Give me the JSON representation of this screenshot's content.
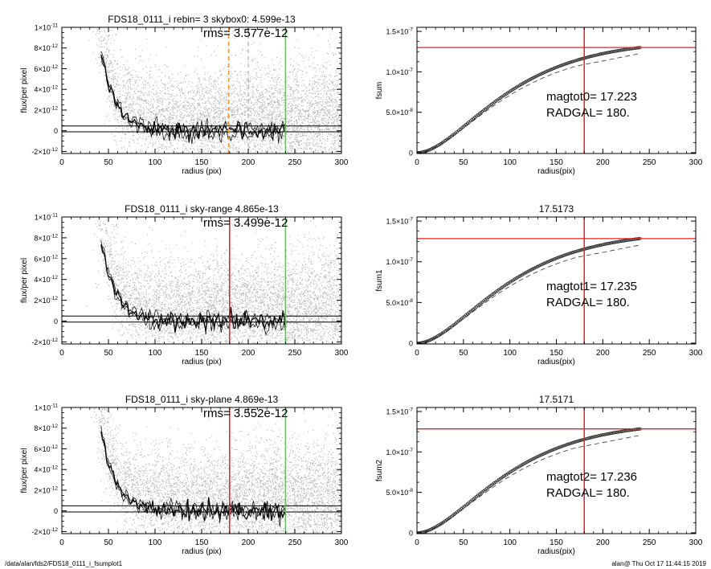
{
  "footer": {
    "path": "/data/alan/fds2/FDS18_0111_i_fsumplot1",
    "stamp": "alan@  Thu Oct 17 11:44:15 2019"
  },
  "colors": {
    "red": "#dd2222",
    "green": "#33dd33",
    "orange": "#e8952a",
    "points": "#b4b4b4",
    "profile": "#000000"
  },
  "chart_data": [
    {
      "type": "scatter",
      "title": "FDS18_0111_i rebin= 3    skybox0:  4.599e-13",
      "annotation": "rms= 3.577e-12",
      "xlabel": "radius (pix)",
      "ylabel": "flux/per pixel",
      "xlim": [
        0,
        300
      ],
      "ylim": [
        -2.2e-12,
        1e-11
      ],
      "xticks": [
        0,
        50,
        100,
        150,
        200,
        250,
        300
      ],
      "xtick_labels": [
        "0",
        "50",
        "100",
        "150",
        "200",
        "250",
        "300"
      ],
      "yticks": [
        -2e-12,
        0,
        2e-12,
        4e-12,
        6e-12,
        8e-12,
        1e-11
      ],
      "ytick_labels": [
        {
          "mant": "-2×10",
          "exp": "-12"
        },
        {
          "mant": "0",
          "exp": ""
        },
        {
          "mant": "2×10",
          "exp": "-12"
        },
        {
          "mant": "4×10",
          "exp": "-12"
        },
        {
          "mant": "6×10",
          "exp": "-12"
        },
        {
          "mant": "8×10",
          "exp": "-12"
        },
        {
          "mant": "1×10",
          "exp": "-11"
        }
      ],
      "profile": {
        "amplitude": 1.18e-10,
        "scale": 15.5,
        "r_start": 42,
        "r_end": 240
      },
      "sky_lines": [
        4.599e-13,
        -1e-13
      ],
      "vlines": [
        {
          "x": 179,
          "color": "orange",
          "dash": true
        },
        {
          "x": 200,
          "color": "gray",
          "dash": true
        },
        {
          "x": 240,
          "color": "green",
          "dash": false
        }
      ],
      "scatter_count": 5200,
      "seed": 11
    },
    {
      "type": "line",
      "title": "",
      "xlabel": "radius(pix)",
      "ylabel": "fsum",
      "xlim": [
        0,
        300
      ],
      "ylim": [
        -1e-09,
        1.55e-07
      ],
      "xticks": [
        0,
        50,
        100,
        150,
        200,
        250,
        300
      ],
      "xtick_labels": [
        "0",
        "50",
        "100",
        "150",
        "200",
        "250",
        "300"
      ],
      "yticks": [
        0,
        5e-08,
        1e-07,
        1.5e-07
      ],
      "ytick_labels": [
        {
          "mant": "0",
          "exp": ""
        },
        {
          "mant": "5.0×10",
          "exp": "-8"
        },
        {
          "mant": "1.0×10",
          "exp": "-7"
        },
        {
          "mant": "1.5×10",
          "exp": "-7"
        }
      ],
      "fsum": {
        "total": 1.3e-07,
        "total_dashed": 1.22e-07,
        "scale": 55,
        "r_end": 240,
        "dash_decline": 1.5e-09
      },
      "hline": 1.3e-07,
      "vline": 180,
      "annotations": [
        "magtot0=  17.223",
        "RADGAL=    180."
      ]
    },
    {
      "type": "scatter",
      "title": "FDS18_0111_i sky-range  4.865e-13",
      "annotation": "rms= 3.499e-12",
      "xlabel": "radius (pix)",
      "ylabel": "flux/per pixel",
      "xlim": [
        0,
        300
      ],
      "ylim": [
        -2.2e-12,
        1e-11
      ],
      "xticks": [
        0,
        50,
        100,
        150,
        200,
        250,
        300
      ],
      "xtick_labels": [
        "0",
        "50",
        "100",
        "150",
        "200",
        "250",
        "300"
      ],
      "yticks": [
        -2e-12,
        0,
        2e-12,
        4e-12,
        6e-12,
        8e-12,
        1e-11
      ],
      "ytick_labels": [
        {
          "mant": "-2×10",
          "exp": "-12"
        },
        {
          "mant": "0",
          "exp": ""
        },
        {
          "mant": "2×10",
          "exp": "-12"
        },
        {
          "mant": "4×10",
          "exp": "-12"
        },
        {
          "mant": "6×10",
          "exp": "-12"
        },
        {
          "mant": "8×10",
          "exp": "-12"
        },
        {
          "mant": "1×10",
          "exp": "-11"
        }
      ],
      "profile": {
        "amplitude": 1.18e-10,
        "scale": 15.5,
        "r_start": 42,
        "r_end": 240
      },
      "sky_lines": [
        4.865e-13,
        -1e-13
      ],
      "vlines": [
        {
          "x": 180,
          "color": "red",
          "dash": false
        },
        {
          "x": 240,
          "color": "green",
          "dash": false
        }
      ],
      "scatter_count": 5200,
      "seed": 23
    },
    {
      "type": "line",
      "title": "17.5173",
      "xlabel": "radius(pix)",
      "ylabel": "fsum1",
      "xlim": [
        0,
        300
      ],
      "ylim": [
        -1e-09,
        1.55e-07
      ],
      "xticks": [
        0,
        50,
        100,
        150,
        200,
        250,
        300
      ],
      "xtick_labels": [
        "0",
        "50",
        "100",
        "150",
        "200",
        "250",
        "300"
      ],
      "yticks": [
        0,
        5e-08,
        1e-07,
        1.5e-07
      ],
      "ytick_labels": [
        {
          "mant": "0",
          "exp": ""
        },
        {
          "mant": "5.0×10",
          "exp": "-8"
        },
        {
          "mant": "1.0×10",
          "exp": "-7"
        },
        {
          "mant": "1.5×10",
          "exp": "-7"
        }
      ],
      "fsum": {
        "total": 1.285e-07,
        "total_dashed": 1.2e-07,
        "scale": 55,
        "r_end": 240,
        "dash_decline": 1.5e-09
      },
      "hline": 1.285e-07,
      "vline": 180,
      "annotations": [
        "magtot1=  17.235",
        "RADGAL=    180."
      ]
    },
    {
      "type": "scatter",
      "title": "FDS18_0111_i sky-plane  4.869e-13",
      "annotation": "rms= 3.552e-12",
      "xlabel": "radius (pix)",
      "ylabel": "flux/per pixel",
      "xlim": [
        0,
        300
      ],
      "ylim": [
        -2.2e-12,
        1e-11
      ],
      "xticks": [
        0,
        50,
        100,
        150,
        200,
        250,
        300
      ],
      "xtick_labels": [
        "0",
        "50",
        "100",
        "150",
        "200",
        "250",
        "300"
      ],
      "yticks": [
        -2e-12,
        0,
        2e-12,
        4e-12,
        6e-12,
        8e-12,
        1e-11
      ],
      "ytick_labels": [
        {
          "mant": "-2×10",
          "exp": "-12"
        },
        {
          "mant": "0",
          "exp": ""
        },
        {
          "mant": "2×10",
          "exp": "-12"
        },
        {
          "mant": "4×10",
          "exp": "-12"
        },
        {
          "mant": "6×10",
          "exp": "-12"
        },
        {
          "mant": "8×10",
          "exp": "-12"
        },
        {
          "mant": "1×10",
          "exp": "-11"
        }
      ],
      "profile": {
        "amplitude": 1.18e-10,
        "scale": 15.5,
        "r_start": 42,
        "r_end": 240
      },
      "sky_lines": [
        4.869e-13,
        -1e-13
      ],
      "vlines": [
        {
          "x": 180,
          "color": "red",
          "dash": false
        },
        {
          "x": 240,
          "color": "green",
          "dash": false
        }
      ],
      "scatter_count": 5200,
      "seed": 37
    },
    {
      "type": "line",
      "title": "17.5171",
      "xlabel": "radius(pix)",
      "ylabel": "fsum2",
      "xlim": [
        0,
        300
      ],
      "ylim": [
        -1e-09,
        1.55e-07
      ],
      "xticks": [
        0,
        50,
        100,
        150,
        200,
        250,
        300
      ],
      "xtick_labels": [
        "0",
        "50",
        "100",
        "150",
        "200",
        "250",
        "300"
      ],
      "yticks": [
        0,
        5e-08,
        1e-07,
        1.5e-07
      ],
      "ytick_labels": [
        {
          "mant": "0",
          "exp": ""
        },
        {
          "mant": "5.0×10",
          "exp": "-8"
        },
        {
          "mant": "1.0×10",
          "exp": "-7"
        },
        {
          "mant": "1.5×10",
          "exp": "-7"
        }
      ],
      "fsum": {
        "total": 1.285e-07,
        "total_dashed": 1.2e-07,
        "scale": 55,
        "r_end": 240,
        "dash_decline": 1.5e-09
      },
      "hline": 1.285e-07,
      "vline": 180,
      "annotations": [
        "magtot2=  17.236",
        "RADGAL=    180."
      ]
    }
  ]
}
